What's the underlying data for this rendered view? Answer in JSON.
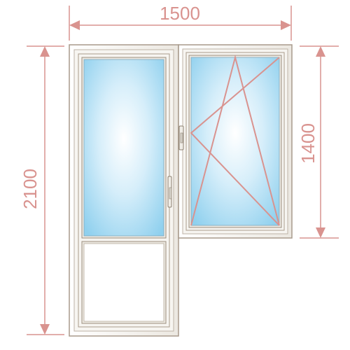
{
  "diagram": {
    "dimensions": {
      "width_label": "1500",
      "height_label_door": "2100",
      "height_label_window": "1400"
    },
    "colors": {
      "dimension": "#d9938f",
      "frame": "#f4f1ec",
      "frame_edge": "#a89a8c",
      "glass_center": "#ffffff",
      "glass_edge": "#8fd0ee",
      "handle": "#d8d4cc"
    },
    "elements": {
      "door": "balcony-door",
      "window": "tilt-turn-window",
      "opening_indicator": "tilt-and-turn-lines"
    }
  }
}
